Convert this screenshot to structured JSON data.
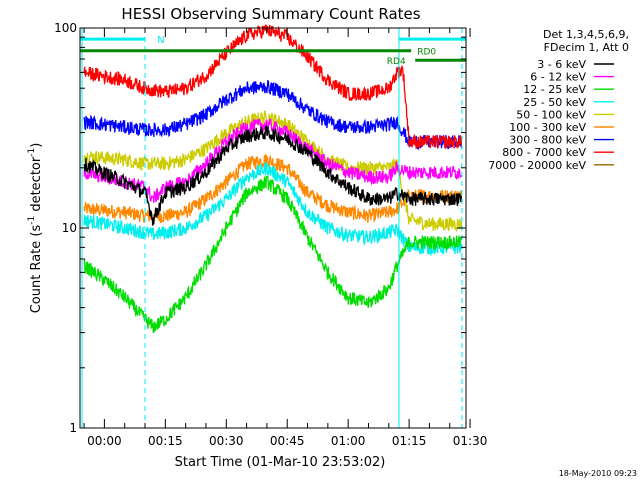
{
  "chart_data": {
    "type": "line",
    "title": "HESSI Observing Summary Count Rates",
    "xlabel": "Start Time (01-Mar-10 23:53:02)",
    "ylabel_main": "Count Rate (s",
    "ylabel_sup1": "-1",
    "ylabel_mid": " detector",
    "ylabel_sup2": "-1",
    "ylabel_end": ")",
    "yscale": "log",
    "xlim": [
      -6,
      89
    ],
    "ylim": [
      1,
      100
    ],
    "x_ticks": [
      {
        "x": 0,
        "label": "00:00"
      },
      {
        "x": 15,
        "label": "00:15"
      },
      {
        "x": 30,
        "label": "00:30"
      },
      {
        "x": 45,
        "label": "00:45"
      },
      {
        "x": 60,
        "label": "01:00"
      },
      {
        "x": 75,
        "label": "01:15"
      },
      {
        "x": 90,
        "label": "01:30"
      }
    ],
    "y_ticks": [
      {
        "y": 1,
        "label": "1"
      },
      {
        "y": 10,
        "label": "10"
      },
      {
        "y": 100,
        "label": "100"
      }
    ],
    "legend_header": [
      "Det 1,3,4,5,6,9,",
      "FDecim 1, Att 0"
    ],
    "legend_position": "right",
    "series": [
      {
        "name": "3 - 6 keV",
        "color": "#000000",
        "x": [
          -5,
          5,
          10,
          12,
          15,
          20,
          25,
          30,
          35,
          40,
          45,
          50,
          55,
          60,
          65,
          70,
          72,
          75,
          80,
          85,
          88
        ],
        "y": [
          21,
          17,
          15,
          11,
          15,
          16,
          19,
          25,
          29,
          30,
          28,
          24,
          19,
          16,
          14,
          14,
          15,
          14,
          14,
          14,
          14
        ]
      },
      {
        "name": "6 - 12 keV",
        "color": "#ff00ff",
        "x": [
          -5,
          5,
          10,
          12,
          15,
          20,
          25,
          30,
          35,
          40,
          45,
          50,
          55,
          60,
          65,
          70,
          72,
          75,
          80,
          85,
          88
        ],
        "y": [
          19,
          17,
          16,
          14,
          16,
          17,
          21,
          27,
          32,
          33,
          30,
          25,
          21,
          19,
          18,
          18,
          20,
          19,
          19,
          19,
          19
        ]
      },
      {
        "name": "12 - 25 keV",
        "color": "#00dd00",
        "x": [
          -5,
          0,
          5,
          10,
          12,
          15,
          20,
          25,
          30,
          35,
          40,
          45,
          50,
          55,
          60,
          65,
          70,
          72,
          75,
          80,
          85,
          88
        ],
        "y": [
          6.5,
          5.5,
          4.5,
          3.5,
          3.2,
          3.5,
          4.5,
          6.5,
          10,
          15,
          17,
          14,
          9,
          6,
          4.5,
          4.2,
          5,
          6.5,
          8.5,
          8.5,
          8.5,
          8.5
        ]
      },
      {
        "name": "25 - 50 keV",
        "color": "#00eeee",
        "x": [
          -5,
          0,
          5,
          10,
          12,
          15,
          20,
          25,
          30,
          35,
          40,
          45,
          50,
          55,
          60,
          65,
          70,
          72,
          75,
          80,
          85,
          88
        ],
        "y": [
          11,
          10.5,
          10,
          9.5,
          9.3,
          9.5,
          10,
          11.5,
          14,
          18,
          20,
          17,
          12,
          10,
          9.2,
          9,
          9.5,
          9.8,
          8,
          8,
          8,
          8
        ]
      },
      {
        "name": "50 - 100 keV",
        "color": "#cccc00",
        "x": [
          -5,
          5,
          10,
          15,
          20,
          25,
          30,
          35,
          40,
          45,
          50,
          55,
          60,
          65,
          70,
          72,
          75,
          80,
          85,
          88
        ],
        "y": [
          23,
          22,
          21,
          21,
          22,
          25,
          30,
          34,
          36,
          33,
          27,
          22,
          20,
          20,
          20,
          21,
          11,
          10.5,
          10.5,
          10.5
        ]
      },
      {
        "name": "100 - 300 keV",
        "color": "#ff8800",
        "x": [
          -5,
          5,
          10,
          15,
          20,
          25,
          30,
          35,
          40,
          45,
          50,
          55,
          60,
          65,
          70,
          72,
          75,
          80,
          85,
          88
        ],
        "y": [
          12.5,
          12,
          11.5,
          11.5,
          12,
          14,
          17,
          21,
          22,
          20,
          15,
          13,
          12,
          11.5,
          12,
          12.5,
          14.5,
          14.5,
          14.5,
          14.5
        ]
      },
      {
        "name": "300 - 800 keV",
        "color": "#0000ff",
        "x": [
          -5,
          5,
          10,
          15,
          20,
          25,
          30,
          35,
          40,
          45,
          50,
          55,
          60,
          65,
          70,
          72,
          75,
          80,
          85,
          88
        ],
        "y": [
          34,
          32,
          31,
          31,
          33,
          37,
          44,
          50,
          51,
          47,
          39,
          34,
          32,
          32,
          33,
          34,
          27,
          27,
          27,
          27
        ]
      },
      {
        "name": "800 - 7000 keV",
        "color": "#ff0000",
        "x": [
          -5,
          5,
          10,
          15,
          20,
          25,
          30,
          35,
          40,
          45,
          50,
          55,
          60,
          65,
          70,
          72,
          73.5,
          75,
          80,
          85,
          88
        ],
        "y": [
          60,
          55,
          50,
          48,
          50,
          58,
          75,
          92,
          98,
          90,
          72,
          55,
          47,
          47,
          50,
          60,
          62,
          27,
          27,
          27,
          27
        ]
      },
      {
        "name": "7000 - 20000 keV",
        "color": "#996600",
        "x": [],
        "y": []
      }
    ],
    "annotations": {
      "night_label": "N",
      "rd0_label": "RD0",
      "rd4_label": "RD4"
    },
    "timestamp": "18-May-2010 09:23"
  }
}
